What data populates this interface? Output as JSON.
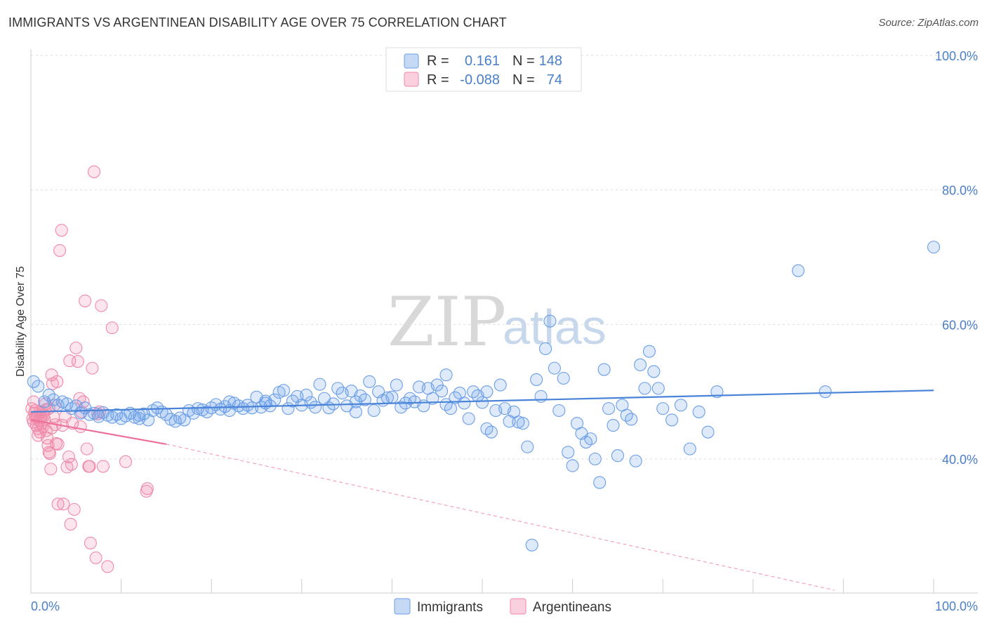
{
  "title": "IMMIGRANTS VS ARGENTINEAN DISABILITY AGE OVER 75 CORRELATION CHART",
  "source": "Source: ZipAtlas.com",
  "watermark": {
    "zip": "ZIP",
    "atlas": "atlas"
  },
  "legend_box": [
    {
      "r_label": "R =",
      "r_value": "0.161",
      "n_label": "N =",
      "n_value": "148",
      "color": "#6b9ee8"
    },
    {
      "r_label": "R =",
      "r_value": "-0.088",
      "n_label": "N =",
      "n_value": "74",
      "color": "#f08aaa"
    }
  ],
  "bottom_legend": [
    {
      "label": "Immigrants",
      "color": "#6b9ee8"
    },
    {
      "label": "Argentineans",
      "color": "#f08aaa"
    }
  ],
  "colors": {
    "blue": "#4a84d8",
    "pink": "#ee6f98",
    "axis_text": "#4a7fc7"
  },
  "chart_data": {
    "type": "scatter",
    "title": "IMMIGRANTS VS ARGENTINEAN DISABILITY AGE OVER 75 CORRELATION CHART",
    "xlabel": "",
    "ylabel": "Disability Age Over 75",
    "xlim": [
      0,
      100
    ],
    "ylim": [
      20,
      104
    ],
    "x_tick_labels": [
      "0.0%",
      "100.0%"
    ],
    "y_ticks": [
      40,
      60,
      80,
      100
    ],
    "y_tick_labels": [
      "40.0%",
      "60.0%",
      "80.0%",
      "100.0%"
    ],
    "grid": true,
    "legend": "top-center",
    "series": [
      {
        "name": "Immigrants",
        "color": "#6b9ee8",
        "r": 0.161,
        "n": 148,
        "trend": {
          "x": [
            0,
            100
          ],
          "y": [
            47.0,
            50.2
          ]
        },
        "points": [
          [
            0.3,
            51.5
          ],
          [
            0.8,
            50.8
          ],
          [
            1.5,
            48.5
          ],
          [
            2.0,
            49.5
          ],
          [
            2.5,
            48.8
          ],
          [
            3.0,
            48.0
          ],
          [
            3.5,
            48.5
          ],
          [
            4.0,
            48.2
          ],
          [
            4.5,
            47.5
          ],
          [
            5.0,
            47.9
          ],
          [
            5.5,
            46.8
          ],
          [
            6.0,
            47.6
          ],
          [
            6.5,
            46.6
          ],
          [
            7.0,
            46.8
          ],
          [
            7.5,
            46.3
          ],
          [
            8.0,
            46.9
          ],
          [
            8.5,
            46.5
          ],
          [
            9.0,
            46.2
          ],
          [
            9.5,
            46.6
          ],
          [
            10.0,
            46.0
          ],
          [
            10.5,
            46.4
          ],
          [
            11.0,
            46.8
          ],
          [
            11.5,
            46.2
          ],
          [
            12.0,
            46.5
          ],
          [
            12.5,
            46.7
          ],
          [
            13.0,
            45.8
          ],
          [
            13.5,
            47.2
          ],
          [
            14.0,
            47.6
          ],
          [
            14.5,
            47.0
          ],
          [
            15.0,
            46.6
          ],
          [
            15.5,
            45.9
          ],
          [
            16.0,
            45.6
          ],
          [
            16.5,
            46.1
          ],
          [
            17.0,
            45.8
          ],
          [
            17.5,
            47.2
          ],
          [
            18.0,
            46.8
          ],
          [
            18.5,
            47.5
          ],
          [
            19.0,
            47.3
          ],
          [
            19.5,
            47.0
          ],
          [
            20.0,
            47.6
          ],
          [
            20.5,
            48.1
          ],
          [
            21.0,
            47.4
          ],
          [
            21.5,
            47.8
          ],
          [
            22.0,
            47.2
          ],
          [
            22.5,
            48.3
          ],
          [
            23.0,
            47.9
          ],
          [
            23.5,
            47.5
          ],
          [
            24.0,
            48.0
          ],
          [
            24.5,
            47.6
          ],
          [
            25.0,
            49.2
          ],
          [
            25.5,
            47.7
          ],
          [
            26.0,
            48.3
          ],
          [
            26.5,
            47.9
          ],
          [
            27.0,
            48.8
          ],
          [
            27.5,
            49.9
          ],
          [
            28.0,
            50.2
          ],
          [
            28.5,
            47.5
          ],
          [
            29.0,
            48.6
          ],
          [
            29.5,
            49.3
          ],
          [
            30.0,
            48.0
          ],
          [
            30.5,
            49.5
          ],
          [
            31.0,
            48.4
          ],
          [
            31.5,
            47.7
          ],
          [
            32.0,
            51.1
          ],
          [
            32.5,
            49.0
          ],
          [
            33.0,
            47.6
          ],
          [
            33.5,
            48.2
          ],
          [
            34.0,
            50.5
          ],
          [
            34.5,
            49.8
          ],
          [
            35.0,
            47.9
          ],
          [
            35.5,
            50.1
          ],
          [
            36.0,
            48.5
          ],
          [
            36.5,
            49.4
          ],
          [
            37.0,
            48.8
          ],
          [
            37.5,
            51.5
          ],
          [
            38.0,
            47.2
          ],
          [
            38.5,
            50.0
          ],
          [
            39.0,
            48.7
          ],
          [
            39.5,
            49.1
          ],
          [
            40.0,
            49.2
          ],
          [
            40.5,
            51.0
          ],
          [
            41.0,
            47.7
          ],
          [
            41.5,
            48.3
          ],
          [
            42.0,
            49.0
          ],
          [
            42.5,
            48.5
          ],
          [
            43.0,
            50.7
          ],
          [
            43.5,
            47.9
          ],
          [
            44.0,
            50.5
          ],
          [
            44.5,
            49.0
          ],
          [
            45.0,
            51.0
          ],
          [
            45.5,
            50.1
          ],
          [
            46.0,
            48.1
          ],
          [
            46.5,
            47.5
          ],
          [
            47.0,
            49.1
          ],
          [
            47.5,
            49.8
          ],
          [
            48.0,
            48.3
          ],
          [
            48.5,
            46.0
          ],
          [
            49.0,
            50.0
          ],
          [
            49.5,
            49.4
          ],
          [
            50.0,
            48.4
          ],
          [
            50.5,
            44.5
          ],
          [
            51.0,
            44.0
          ],
          [
            51.5,
            47.2
          ],
          [
            52.0,
            51.0
          ],
          [
            52.5,
            47.5
          ],
          [
            53.0,
            45.6
          ],
          [
            53.5,
            47.0
          ],
          [
            54.0,
            45.5
          ],
          [
            54.5,
            45.3
          ],
          [
            55.0,
            41.8
          ],
          [
            55.5,
            27.2
          ],
          [
            56.0,
            51.8
          ],
          [
            56.5,
            49.3
          ],
          [
            57.0,
            56.4
          ],
          [
            57.5,
            60.5
          ],
          [
            58.0,
            53.5
          ],
          [
            58.5,
            47.2
          ],
          [
            59.0,
            52.0
          ],
          [
            59.5,
            41.0
          ],
          [
            60.0,
            39.0
          ],
          [
            60.5,
            45.3
          ],
          [
            61.0,
            43.8
          ],
          [
            61.5,
            42.5
          ],
          [
            62.0,
            43.0
          ],
          [
            62.5,
            40.0
          ],
          [
            63.0,
            36.5
          ],
          [
            63.5,
            53.3
          ],
          [
            64.0,
            47.5
          ],
          [
            64.5,
            45.0
          ],
          [
            65.0,
            40.5
          ],
          [
            65.5,
            48.0
          ],
          [
            66.0,
            46.5
          ],
          [
            66.5,
            45.9
          ],
          [
            67.0,
            39.7
          ],
          [
            67.5,
            54.0
          ],
          [
            68.0,
            50.5
          ],
          [
            68.5,
            56.0
          ],
          [
            69.0,
            53.0
          ],
          [
            69.5,
            50.5
          ],
          [
            70.0,
            47.5
          ],
          [
            71.0,
            45.8
          ],
          [
            72.0,
            48.0
          ],
          [
            73.0,
            41.5
          ],
          [
            74.0,
            47.0
          ],
          [
            75.0,
            44.0
          ],
          [
            76.0,
            50.0
          ],
          [
            85.0,
            68.0
          ],
          [
            88.0,
            50.0
          ],
          [
            100.0,
            71.5
          ],
          [
            12.0,
            46.0
          ],
          [
            22.0,
            48.5
          ],
          [
            26.0,
            48.6
          ],
          [
            36.0,
            47.0
          ],
          [
            46.0,
            52.5
          ],
          [
            50.5,
            50.0
          ]
        ]
      },
      {
        "name": "Argentineans",
        "color": "#f08aaa",
        "r": -0.088,
        "n": 74,
        "trend": {
          "x": [
            0,
            15
          ],
          "y": [
            45.8,
            42.2
          ]
        },
        "trend_ext": {
          "x": [
            15,
            89
          ],
          "y": [
            42.2,
            20.5
          ]
        },
        "points": [
          [
            0.1,
            47.5
          ],
          [
            0.2,
            46.0
          ],
          [
            0.3,
            45.5
          ],
          [
            0.4,
            46.8
          ],
          [
            0.5,
            47.2
          ],
          [
            0.6,
            45.0
          ],
          [
            0.7,
            46.3
          ],
          [
            0.8,
            44.5
          ],
          [
            0.9,
            45.7
          ],
          [
            1.0,
            47.0
          ],
          [
            1.1,
            46.1
          ],
          [
            1.2,
            45.3
          ],
          [
            1.3,
            44.8
          ],
          [
            1.4,
            46.5
          ],
          [
            1.5,
            45.9
          ],
          [
            1.6,
            47.3
          ],
          [
            1.7,
            44.2
          ],
          [
            1.8,
            43.1
          ],
          [
            1.9,
            42.0
          ],
          [
            2.0,
            41.0
          ],
          [
            2.1,
            40.8
          ],
          [
            2.2,
            38.5
          ],
          [
            2.3,
            52.5
          ],
          [
            2.4,
            51.2
          ],
          [
            2.5,
            46.3
          ],
          [
            2.6,
            48.0
          ],
          [
            2.7,
            45.1
          ],
          [
            2.8,
            42.3
          ],
          [
            3.0,
            33.3
          ],
          [
            3.2,
            71.0
          ],
          [
            3.4,
            74.0
          ],
          [
            3.6,
            33.3
          ],
          [
            3.8,
            46.3
          ],
          [
            4.0,
            38.8
          ],
          [
            4.2,
            40.3
          ],
          [
            4.4,
            30.3
          ],
          [
            4.6,
            45.3
          ],
          [
            4.8,
            32.5
          ],
          [
            5.0,
            56.5
          ],
          [
            5.2,
            54.5
          ],
          [
            5.4,
            49.0
          ],
          [
            5.6,
            47.0
          ],
          [
            5.8,
            48.5
          ],
          [
            6.0,
            63.5
          ],
          [
            6.2,
            41.5
          ],
          [
            6.4,
            38.9
          ],
          [
            6.6,
            27.5
          ],
          [
            6.8,
            53.5
          ],
          [
            7.0,
            82.7
          ],
          [
            7.2,
            25.3
          ],
          [
            7.4,
            46.7
          ],
          [
            7.6,
            47.0
          ],
          [
            7.8,
            62.8
          ],
          [
            8.0,
            38.9
          ],
          [
            8.5,
            24.0
          ],
          [
            9.0,
            59.5
          ],
          [
            10.5,
            39.6
          ],
          [
            12.8,
            35.2
          ],
          [
            12.9,
            35.6
          ],
          [
            4.3,
            54.6
          ],
          [
            3.0,
            42.2
          ],
          [
            1.0,
            44.0
          ],
          [
            0.5,
            46.2
          ],
          [
            2.0,
            47.5
          ],
          [
            5.5,
            44.8
          ],
          [
            4.5,
            39.2
          ],
          [
            0.8,
            43.5
          ],
          [
            2.3,
            44.6
          ],
          [
            1.6,
            48.2
          ],
          [
            3.5,
            45.0
          ],
          [
            6.5,
            38.9
          ],
          [
            1.3,
            47.0
          ],
          [
            0.3,
            48.5
          ],
          [
            2.9,
            51.5
          ]
        ]
      }
    ]
  }
}
